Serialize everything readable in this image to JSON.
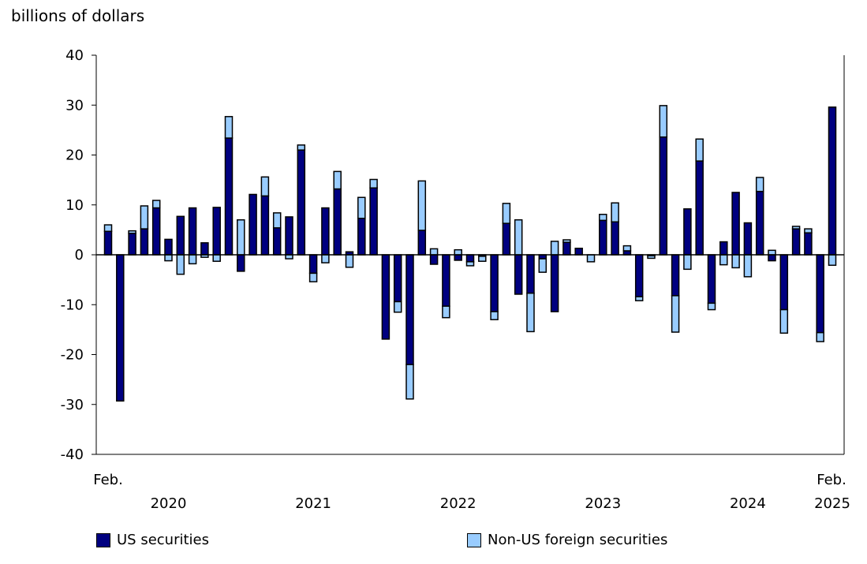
{
  "chart_data": {
    "type": "bar",
    "stacked": true,
    "ylabel": "billions of dollars",
    "ylim": [
      -40,
      40
    ],
    "yticks": [
      40,
      30,
      20,
      10,
      0,
      -10,
      -20,
      -30,
      -40
    ],
    "x_start": "Feb. 2020",
    "x_end": "Feb. 2025",
    "x_labels": {
      "first": "Feb.",
      "last_month": "Feb.",
      "years": [
        "2020",
        "2021",
        "2022",
        "2023",
        "2024",
        "2025"
      ]
    },
    "legend_position": "bottom",
    "series": [
      {
        "name": "US securities",
        "color": "#000080",
        "values": [
          4.7,
          -29.3,
          4.3,
          5.2,
          9.4,
          3.1,
          7.7,
          9.4,
          2.4,
          9.5,
          23.4,
          -3.3,
          12.1,
          11.8,
          5.4,
          7.6,
          21.0,
          -3.7,
          9.4,
          13.2,
          0.6,
          7.3,
          13.4,
          -16.9,
          -9.4,
          -22.0,
          4.9,
          -1.9,
          -10.3,
          -1.1,
          -1.4,
          -0.3,
          -11.4,
          6.3,
          -7.9,
          -7.7,
          -0.8,
          -11.4,
          2.5,
          1.3,
          0.0,
          6.9,
          6.6,
          0.8,
          -8.4,
          -0.2,
          23.6,
          -8.2,
          9.2,
          18.8,
          -9.7,
          2.6,
          12.5,
          6.4,
          12.7,
          -1.2,
          -11.0,
          5.2,
          4.4,
          -15.6,
          29.6
        ]
      },
      {
        "name": "Non-US foreign securities",
        "color": "#99ccff",
        "values": [
          1.3,
          0.0,
          0.5,
          4.6,
          1.5,
          -1.2,
          -3.9,
          -1.8,
          -0.5,
          -1.3,
          4.3,
          7.0,
          0.0,
          3.8,
          3.0,
          -0.8,
          1.0,
          -1.7,
          -1.6,
          3.5,
          -2.5,
          4.2,
          1.7,
          0.0,
          -2.1,
          -6.9,
          9.9,
          1.2,
          -2.3,
          1.0,
          -0.8,
          -1.0,
          -1.6,
          4.0,
          7.0,
          -7.7,
          -2.7,
          2.7,
          0.5,
          0.0,
          -1.4,
          1.2,
          3.8,
          1.0,
          -0.8,
          -0.5,
          6.3,
          -7.3,
          -2.9,
          4.4,
          -1.3,
          -2.0,
          -2.6,
          -4.4,
          2.8,
          0.9,
          -4.7,
          0.5,
          0.8,
          -1.8,
          -2.1
        ]
      }
    ]
  }
}
